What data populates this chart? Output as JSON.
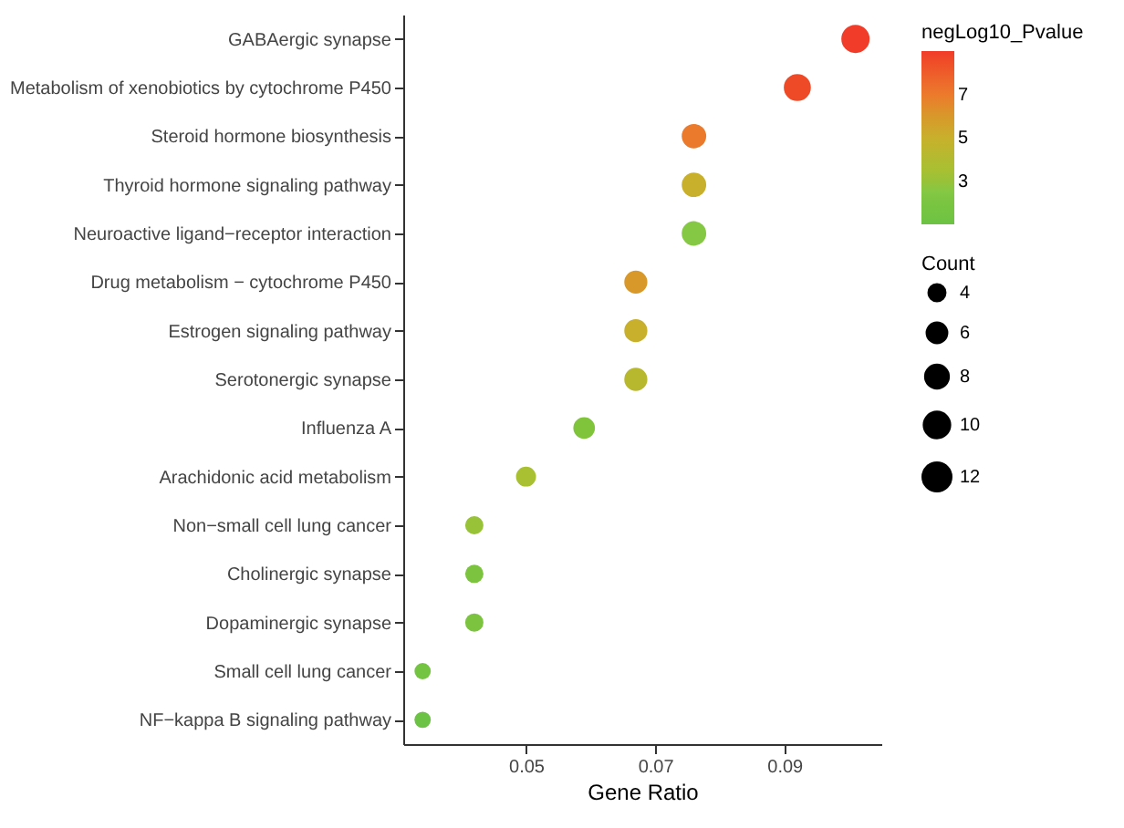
{
  "chart_data": {
    "type": "bubble",
    "xlabel": "Gene Ratio",
    "legend_title": "Count",
    "clabel": "negLog10_Pvalue",
    "categories": [
      "GABAergic synapse",
      "Metabolism of xenobiotics by cytochrome P450",
      "Steroid hormone biosynthesis",
      "Thyroid hormone signaling pathway",
      "Neuroactive ligand−receptor interaction",
      "Drug metabolism − cytochrome P450",
      "Estrogen signaling pathway",
      "Serotonergic synapse",
      "Influenza A",
      "Arachidonic acid metabolism",
      "Non−small cell lung cancer",
      "Cholinergic synapse",
      "Dopaminergic synapse",
      "Small cell lung cancer",
      "NF−kappa B signaling pathway"
    ],
    "orientation": "horizontal",
    "values": [
      0.101,
      0.092,
      0.076,
      0.076,
      0.076,
      0.067,
      0.067,
      0.067,
      0.059,
      0.05,
      0.042,
      0.042,
      0.042,
      0.034,
      0.034
    ],
    "sizes": [
      12,
      11,
      9,
      9,
      9,
      8,
      8,
      8,
      7,
      6,
      5,
      5,
      5,
      4,
      4
    ],
    "size_legend": [
      4,
      6,
      8,
      10,
      12
    ],
    "cvalues": [
      9.0,
      8.6,
      7.0,
      5.0,
      2.5,
      6.0,
      5.0,
      4.3,
      2.3,
      3.5,
      3.0,
      2.2,
      2.2,
      1.5,
      1.0
    ],
    "colors": [
      "#f03c28",
      "#ef4a28",
      "#ec7a2c",
      "#c8b02c",
      "#84c844",
      "#d8982a",
      "#c8b02c",
      "#b8b82e",
      "#80c43c",
      "#a8c032",
      "#98c238",
      "#7cc440",
      "#7cc440",
      "#74c442",
      "#6cc244"
    ],
    "clim": [
      1.0,
      9.0
    ],
    "cticks": [
      3,
      5,
      7
    ],
    "xlim": [
      0.031,
      0.105
    ],
    "xticks": [
      0.05,
      0.07,
      0.09
    ],
    "grid": false
  }
}
